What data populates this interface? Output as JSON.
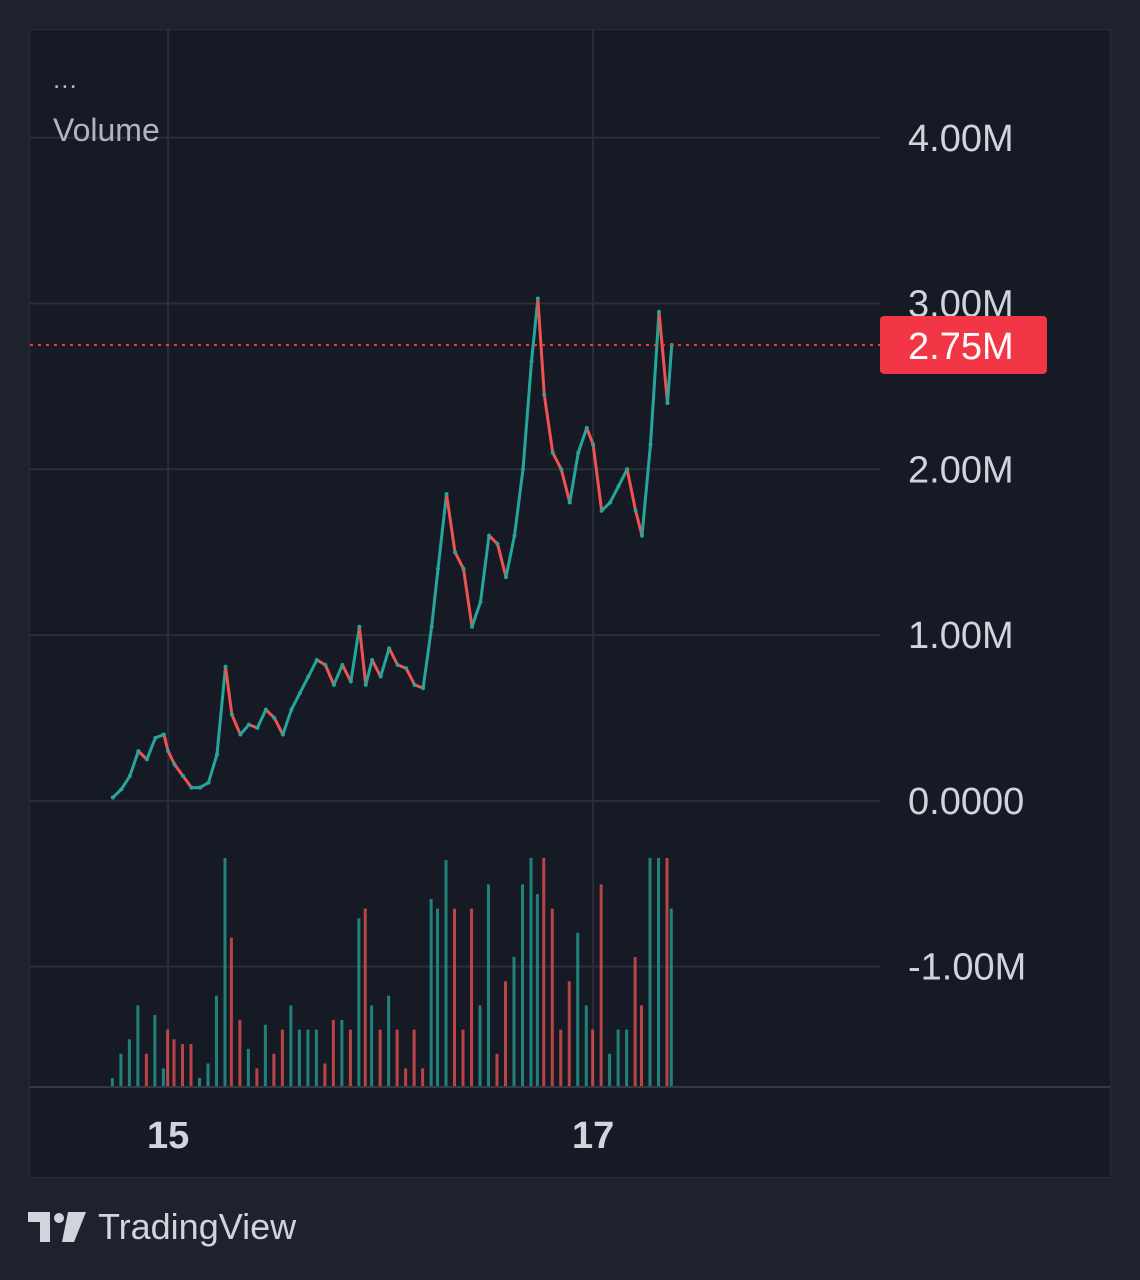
{
  "header": {
    "menu_icon": "more-dots-icon",
    "menu_label": "...",
    "pane_title": "Volume"
  },
  "footer": {
    "brand_icon": "tradingview-logo-icon",
    "brand": "TradingView"
  },
  "colors": {
    "background": "#1e222d",
    "pane": "#161a25",
    "grid": "#2a2e39",
    "up": "#26a69a",
    "down": "#ef5350",
    "last_value_badge": "#f23645",
    "axis_text": "#d1d4dc"
  },
  "chart_data": {
    "type": "line",
    "title": "",
    "series_name": "",
    "y_axis": {
      "ticks": [
        4000000,
        3000000,
        2000000,
        1000000,
        0,
        -1000000
      ],
      "tick_labels": [
        "4.00M",
        "3.00M",
        "2.00M",
        "1.00M",
        "0.0000",
        "-1.00M"
      ],
      "range": [
        -1720000,
        4650000
      ]
    },
    "x_axis": {
      "ticks": [
        15,
        17
      ],
      "tick_labels": [
        "15",
        "17"
      ],
      "range": [
        14.35,
        18.35
      ]
    },
    "last_value": 2750000,
    "last_value_label": "2.75M",
    "legend": "none",
    "grid": true,
    "points": [
      [
        14.74,
        0.02
      ],
      [
        14.78,
        0.07
      ],
      [
        14.82,
        0.15
      ],
      [
        14.86,
        0.3
      ],
      [
        14.9,
        0.25
      ],
      [
        14.94,
        0.38
      ],
      [
        14.98,
        0.4
      ],
      [
        15.0,
        0.3
      ],
      [
        15.03,
        0.22
      ],
      [
        15.07,
        0.15
      ],
      [
        15.11,
        0.08
      ],
      [
        15.15,
        0.08
      ],
      [
        15.19,
        0.11
      ],
      [
        15.23,
        0.28
      ],
      [
        15.27,
        0.81
      ],
      [
        15.3,
        0.52
      ],
      [
        15.34,
        0.4
      ],
      [
        15.38,
        0.46
      ],
      [
        15.42,
        0.44
      ],
      [
        15.46,
        0.55
      ],
      [
        15.5,
        0.5
      ],
      [
        15.54,
        0.4
      ],
      [
        15.58,
        0.55
      ],
      [
        15.62,
        0.65
      ],
      [
        15.66,
        0.75
      ],
      [
        15.7,
        0.85
      ],
      [
        15.74,
        0.82
      ],
      [
        15.78,
        0.7
      ],
      [
        15.82,
        0.82
      ],
      [
        15.86,
        0.72
      ],
      [
        15.9,
        1.05
      ],
      [
        15.93,
        0.7
      ],
      [
        15.96,
        0.85
      ],
      [
        16.0,
        0.75
      ],
      [
        16.04,
        0.92
      ],
      [
        16.08,
        0.82
      ],
      [
        16.12,
        0.8
      ],
      [
        16.16,
        0.7
      ],
      [
        16.2,
        0.68
      ],
      [
        16.24,
        1.05
      ],
      [
        16.27,
        1.4
      ],
      [
        16.31,
        1.85
      ],
      [
        16.35,
        1.5
      ],
      [
        16.39,
        1.4
      ],
      [
        16.43,
        1.05
      ],
      [
        16.47,
        1.2
      ],
      [
        16.51,
        1.6
      ],
      [
        16.55,
        1.55
      ],
      [
        16.59,
        1.35
      ],
      [
        16.63,
        1.6
      ],
      [
        16.67,
        2.0
      ],
      [
        16.71,
        2.65
      ],
      [
        16.74,
        3.03
      ],
      [
        16.77,
        2.45
      ],
      [
        16.81,
        2.1
      ],
      [
        16.85,
        2.0
      ],
      [
        16.89,
        1.8
      ],
      [
        16.93,
        2.1
      ],
      [
        16.97,
        2.25
      ],
      [
        17.0,
        2.15
      ],
      [
        17.04,
        1.75
      ],
      [
        17.08,
        1.8
      ],
      [
        17.12,
        1.9
      ],
      [
        17.16,
        2.0
      ],
      [
        17.2,
        1.75
      ],
      [
        17.23,
        1.6
      ],
      [
        17.27,
        2.15
      ],
      [
        17.31,
        2.95
      ],
      [
        17.35,
        2.4
      ],
      [
        17.37,
        2.75
      ]
    ]
  }
}
